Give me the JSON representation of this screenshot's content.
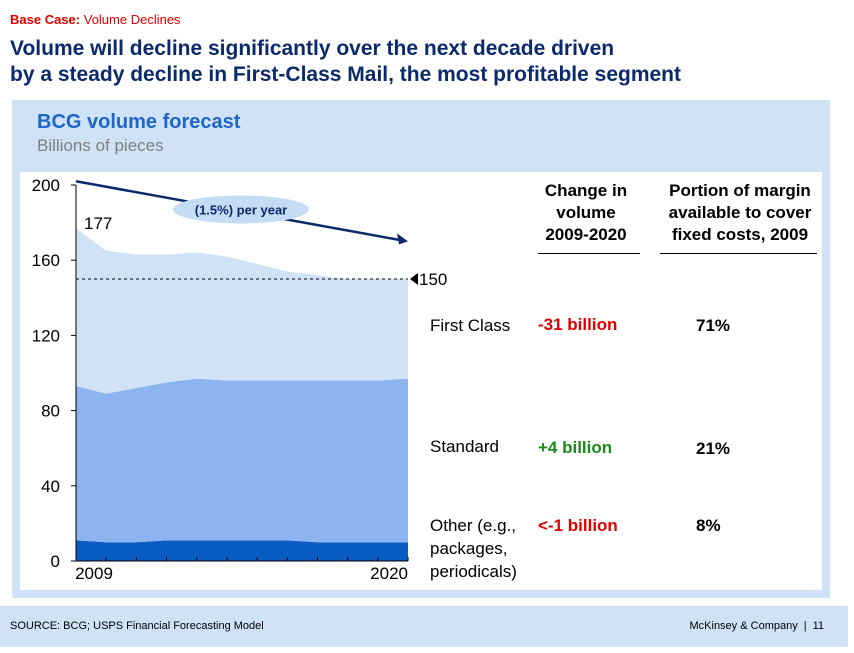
{
  "header": {
    "case_label": "Base Case:",
    "case_text": "Volume Declines",
    "headline_line1": "Volume will decline significantly over the next decade driven",
    "headline_line2": "by a steady decline in First-Class Mail, the most profitable segment"
  },
  "panel": {
    "title": "BCG volume forecast",
    "subtitle": "Billions of pieces"
  },
  "chart_data": {
    "type": "area",
    "x": [
      2009,
      2010,
      2011,
      2012,
      2013,
      2014,
      2015,
      2016,
      2017,
      2018,
      2019,
      2020
    ],
    "x_tick_labels": [
      "2009",
      "2020"
    ],
    "y_ticks": [
      0,
      40,
      80,
      120,
      160,
      200
    ],
    "ylim": [
      0,
      200
    ],
    "series": [
      {
        "name": "Other (e.g., packages, periodicals)",
        "values": [
          11,
          10,
          10,
          11,
          11,
          11,
          11,
          11,
          10,
          10,
          10,
          10
        ],
        "color": "#0a5bc4"
      },
      {
        "name": "Standard",
        "values": [
          82,
          79,
          82,
          84,
          86,
          85,
          85,
          85,
          86,
          86,
          86,
          87
        ],
        "color": "#8db4f0"
      },
      {
        "name": "First Class",
        "values": [
          84,
          76,
          71,
          68,
          67,
          66,
          62,
          58,
          56,
          54,
          54,
          53
        ],
        "color": "#cfe2f6"
      }
    ],
    "annotations": {
      "start_value": "177",
      "end_value": "150",
      "trend_label": "(1.5%) per year",
      "reference_line_value": 150
    }
  },
  "table": {
    "col_change": "Change in volume 2009-2020",
    "col_change_lines": [
      "Change in",
      "volume",
      "2009-2020"
    ],
    "col_portion_lines": [
      "Portion of margin",
      "available to cover",
      "fixed costs, 2009"
    ],
    "rows": [
      {
        "label_lines": [
          "First Class"
        ],
        "change": "-31 billion",
        "change_color": "#e00000",
        "portion": "71%"
      },
      {
        "label_lines": [
          "Standard"
        ],
        "change": "+4 billion",
        "change_color": "#1a8a1a",
        "portion": "21%"
      },
      {
        "label_lines": [
          "Other (e.g.,",
          "packages,",
          "periodicals)"
        ],
        "change": "<-1 billion",
        "change_color": "#e00000",
        "portion": "8%"
      }
    ]
  },
  "footer": {
    "source": "SOURCE: BCG; USPS Financial Forecasting Model",
    "brand": "McKinsey & Company",
    "page_number": "11"
  },
  "colors": {
    "headline": "#0b2a6b",
    "accent_red": "#e00000",
    "panel_bg": "#cfe2f6",
    "title_blue": "#1d67c6",
    "trend_arrow": "#0b2a6b",
    "trend_bubble": "#c5dcf5"
  }
}
